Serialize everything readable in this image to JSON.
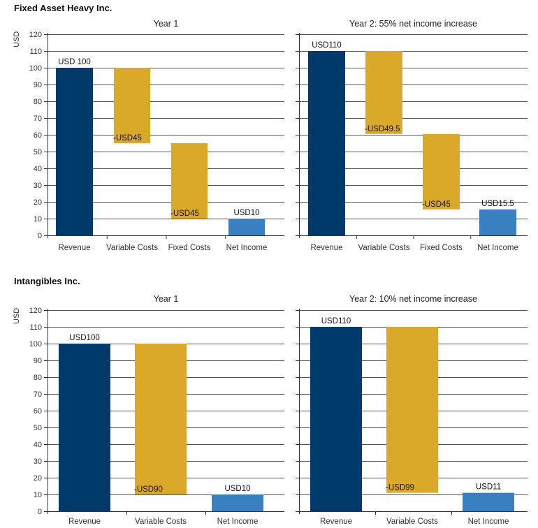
{
  "groups": [
    {
      "title": "Fixed Asset Heavy Inc.",
      "ylabel": "USD"
    },
    {
      "title": "Intangibles Inc.",
      "ylabel": "USD"
    }
  ],
  "colors": {
    "revenue": "#003a6b",
    "cost": "#dba92a",
    "net": "#3a80c1",
    "grid": "#555555",
    "axis": "#333333"
  },
  "chart_data": [
    {
      "type": "bar",
      "subtype": "waterfall",
      "title": "Year 1",
      "categories": [
        "Revenue",
        "Variable Costs",
        "Fixed Costs",
        "Net Income"
      ],
      "bars": [
        {
          "category": "Revenue",
          "start": 0,
          "end": 100,
          "kind": "revenue",
          "label": "USD 100"
        },
        {
          "category": "Variable Costs",
          "start": 100,
          "end": 55,
          "kind": "cost",
          "label": "-USD45"
        },
        {
          "category": "Fixed Costs",
          "start": 55,
          "end": 10,
          "kind": "cost",
          "label": "-USD45"
        },
        {
          "category": "Net Income",
          "start": 0,
          "end": 10,
          "kind": "net",
          "label": "USD10"
        }
      ],
      "yticks": [
        "0",
        "10",
        "20",
        "30",
        "40",
        "50",
        "60",
        "70",
        "80",
        "90",
        "100",
        "110",
        "120"
      ],
      "ylim": [
        0,
        120
      ],
      "grid": true
    },
    {
      "type": "bar",
      "subtype": "waterfall",
      "title": "Year 2: 55% net income increase",
      "categories": [
        "Revenue",
        "Variable Costs",
        "Fixed Costs",
        "Net Income"
      ],
      "bars": [
        {
          "category": "Revenue",
          "start": 0,
          "end": 110,
          "kind": "revenue",
          "label": "USD110"
        },
        {
          "category": "Variable Costs",
          "start": 110,
          "end": 60.5,
          "kind": "cost",
          "label": "-USD49.5"
        },
        {
          "category": "Fixed Costs",
          "start": 60.5,
          "end": 15.5,
          "kind": "cost",
          "label": "-USD45"
        },
        {
          "category": "Net Income",
          "start": 0,
          "end": 15.5,
          "kind": "net",
          "label": "USD15.5"
        }
      ],
      "ylim": [
        0,
        120
      ],
      "grid": true
    },
    {
      "type": "bar",
      "subtype": "waterfall",
      "title": "Year 1",
      "categories": [
        "Revenue",
        "Variable Costs",
        "Net Income"
      ],
      "bars": [
        {
          "category": "Revenue",
          "start": 0,
          "end": 100,
          "kind": "revenue",
          "label": "USD100"
        },
        {
          "category": "Variable Costs",
          "start": 100,
          "end": 10,
          "kind": "cost",
          "label": "-USD90"
        },
        {
          "category": "Net Income",
          "start": 0,
          "end": 10,
          "kind": "net",
          "label": "USD10"
        }
      ],
      "yticks": [
        "0",
        "10",
        "20",
        "30",
        "40",
        "50",
        "60",
        "70",
        "80",
        "90",
        "100",
        "110",
        "120"
      ],
      "ylim": [
        0,
        120
      ],
      "grid": true
    },
    {
      "type": "bar",
      "subtype": "waterfall",
      "title": "Year 2: 10% net income increase",
      "categories": [
        "Revenue",
        "Variable Costs",
        "Net Income"
      ],
      "bars": [
        {
          "category": "Revenue",
          "start": 0,
          "end": 110,
          "kind": "revenue",
          "label": "USD110"
        },
        {
          "category": "Variable Costs",
          "start": 110,
          "end": 11,
          "kind": "cost",
          "label": "-USD99"
        },
        {
          "category": "Net Income",
          "start": 0,
          "end": 11,
          "kind": "net",
          "label": "USD11"
        }
      ],
      "ylim": [
        0,
        120
      ],
      "grid": true
    }
  ]
}
